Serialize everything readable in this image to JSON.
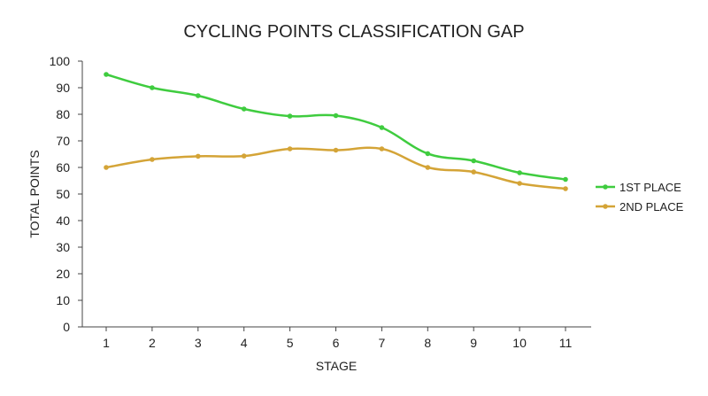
{
  "chart_data": {
    "type": "line",
    "title": "CYCLING POINTS CLASSIFICATION GAP",
    "xlabel": "STAGE",
    "ylabel": "TOTAL POINTS",
    "x": [
      1,
      2,
      3,
      4,
      5,
      6,
      7,
      8,
      9,
      10,
      11
    ],
    "ylim": [
      0,
      100
    ],
    "yticks": [
      0,
      10,
      20,
      30,
      40,
      50,
      60,
      70,
      80,
      90,
      100
    ],
    "grid": false,
    "legend_position": "right",
    "series": [
      {
        "name": "1ST PLACE",
        "color": "#3fcc3f",
        "values": [
          95,
          90,
          87,
          82,
          79.3,
          79.5,
          75,
          65.2,
          62.5,
          58,
          55.5
        ]
      },
      {
        "name": "2ND PLACE",
        "color": "#d4a437",
        "values": [
          60,
          63,
          64.2,
          64.3,
          67,
          66.5,
          67,
          60,
          58.3,
          54,
          52
        ]
      }
    ]
  }
}
